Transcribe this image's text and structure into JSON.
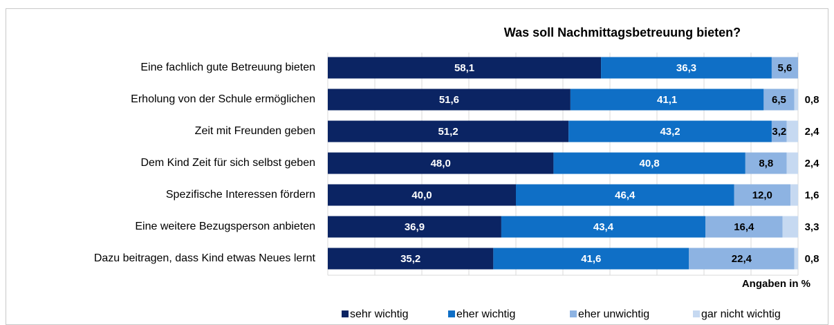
{
  "chart_data": {
    "type": "stacked_bar_horizontal",
    "title": "Was soll Nachmittagsbetreuung bieten?",
    "x_label": "Angaben in %",
    "categories": [
      "Eine fachlich gute Betreuung bieten",
      "Erholung von der Schule ermöglichen",
      "Zeit mit Freunden geben",
      "Dem Kind Zeit für sich selbst geben",
      "Spezifische Interessen fördern",
      "Eine weitere Bezugsperson anbieten",
      "Dazu beitragen, dass Kind etwas Neues lernt"
    ],
    "series": [
      {
        "name": "sehr wichtig",
        "color": "#0b2463",
        "values": [
          58.1,
          51.6,
          51.2,
          48.0,
          40.0,
          36.9,
          35.2
        ],
        "value_labels": [
          "58,1",
          "51,6",
          "51,2",
          "48,0",
          "40,0",
          "36,9",
          "35,2"
        ]
      },
      {
        "name": "eher wichtig",
        "color": "#0f6fc6",
        "values": [
          36.3,
          41.1,
          43.2,
          40.8,
          46.4,
          43.4,
          41.6
        ],
        "value_labels": [
          "36,3",
          "41,1",
          "43,2",
          "40,8",
          "46,4",
          "43,4",
          "41,6"
        ]
      },
      {
        "name": "eher unwichtig",
        "color": "#8db3e2",
        "values": [
          5.6,
          6.5,
          3.2,
          8.8,
          12.0,
          16.4,
          22.4
        ],
        "value_labels": [
          "5,6",
          "6,5",
          "3,2",
          "8,8",
          "12,0",
          "16,4",
          "22,4"
        ]
      },
      {
        "name": "gar nicht wichtig",
        "color": "#c6d9f1",
        "values": [
          null,
          0.8,
          2.4,
          2.4,
          1.6,
          3.3,
          0.8
        ],
        "value_labels": [
          null,
          "0,8",
          "2,4",
          "2,4",
          "1,6",
          "3,3",
          "0,8"
        ]
      }
    ],
    "xlim": [
      0,
      100
    ],
    "xticks": [
      0,
      10,
      20,
      30,
      40,
      50,
      60,
      70,
      80,
      90,
      100
    ],
    "grid": true,
    "legend": "bottom"
  }
}
